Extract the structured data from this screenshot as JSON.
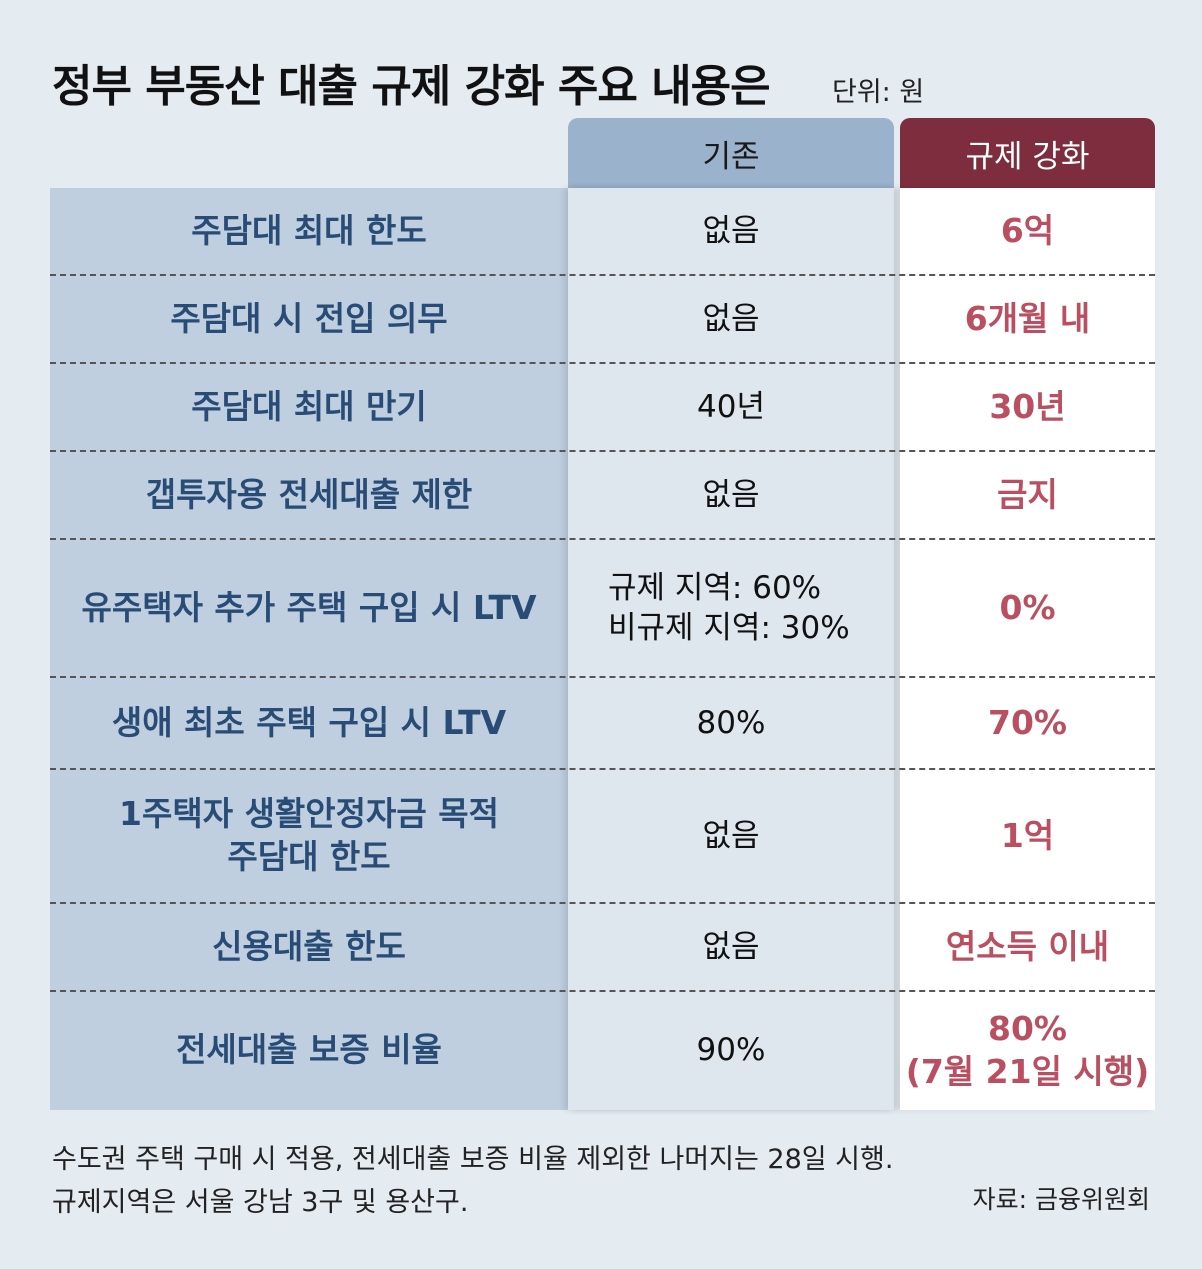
{
  "title": "정부 부동산 대출 규제 강화 주요 내용은",
  "unit": "단위: 원",
  "headers": {
    "old": "기존",
    "new": "규제 강화"
  },
  "rows": [
    {
      "label": [
        "주담대 최대 한도"
      ],
      "old": [
        "없음"
      ],
      "new": [
        "6억"
      ]
    },
    {
      "label": [
        "주담대 시 전입 의무"
      ],
      "old": [
        "없음"
      ],
      "new": [
        "6개월 내"
      ]
    },
    {
      "label": [
        "주담대 최대 만기"
      ],
      "old": [
        "40년"
      ],
      "new": [
        "30년"
      ]
    },
    {
      "label": [
        "갭투자용 전세대출 제한"
      ],
      "old": [
        "없음"
      ],
      "new": [
        "금지"
      ]
    },
    {
      "label": [
        "유주택자 추가 주택 구입 시 LTV"
      ],
      "old": [
        "규제 지역: 60%",
        "비규제 지역: 30%"
      ],
      "new": [
        "0%"
      ]
    },
    {
      "label": [
        "생애 최초 주택 구입 시 LTV"
      ],
      "old": [
        "80%"
      ],
      "new": [
        "70%"
      ]
    },
    {
      "label": [
        "1주택자 생활안정자금 목적",
        "주담대 한도"
      ],
      "old": [
        "없음"
      ],
      "new": [
        "1억"
      ]
    },
    {
      "label": [
        "신용대출 한도"
      ],
      "old": [
        "없음"
      ],
      "new": [
        "연소득 이내"
      ]
    },
    {
      "label": [
        "전세대출 보증 비율"
      ],
      "old": [
        "90%"
      ],
      "new": [
        "80%",
        "(7월 21일 시행)"
      ]
    }
  ],
  "notes": [
    "수도권 주택 구매 시 적용, 전세대출 보증 비율 제외한 나머지는 28일 시행.",
    "규제지역은 서울 강남 3구 및 용산구."
  ],
  "source": "자료: 금융위원회"
}
